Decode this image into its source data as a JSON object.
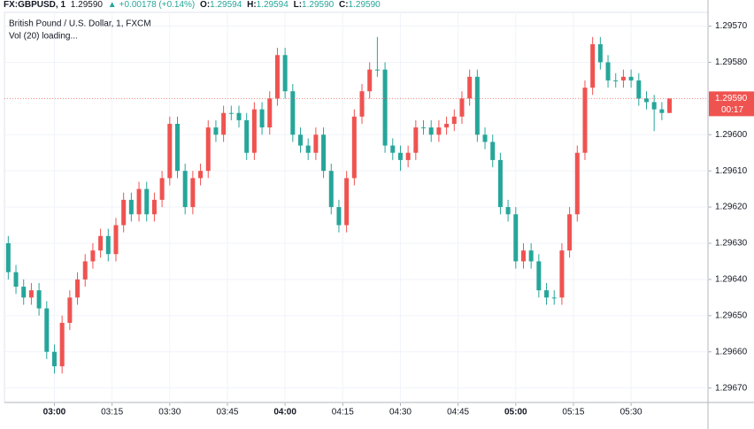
{
  "header": {
    "symbol": "FX:GBPUSD, 1",
    "price": "1.29590",
    "change": "+0.00178 (+0.14%)",
    "ohlc": [
      {
        "label": "O:",
        "value": "1.29594"
      },
      {
        "label": "H:",
        "value": "1.29594"
      },
      {
        "label": "L:",
        "value": "1.29590"
      },
      {
        "label": "C:",
        "value": "1.29590"
      }
    ]
  },
  "chart_data": {
    "type": "candlestick",
    "legend": [
      "British Pound / U.S. Dollar, 1, FXCM",
      "Vol (20) loading..."
    ],
    "up_color": "#26a69a",
    "down_color": "#ef5350",
    "grid": true,
    "xlim": [
      167,
      350
    ],
    "ylim": [
      1.29564,
      1.29674
    ],
    "xticks": [
      {
        "value": 180,
        "label": "03:00"
      },
      {
        "value": 195,
        "label": "03:15"
      },
      {
        "value": 210,
        "label": "03:30"
      },
      {
        "value": 225,
        "label": "03:45"
      },
      {
        "value": 240,
        "label": "04:00"
      },
      {
        "value": 255,
        "label": "04:15"
      },
      {
        "value": 270,
        "label": "04:30"
      },
      {
        "value": 285,
        "label": "04:45"
      },
      {
        "value": 300,
        "label": "05:00"
      },
      {
        "value": 315,
        "label": "05:15"
      },
      {
        "value": 330,
        "label": "05:30"
      }
    ],
    "yticks": [
      {
        "value": 1.2967,
        "label": "1.29670"
      },
      {
        "value": 1.2966,
        "label": "1.29660"
      },
      {
        "value": 1.2965,
        "label": "1.29650"
      },
      {
        "value": 1.2964,
        "label": "1.29640"
      },
      {
        "value": 1.2963,
        "label": "1.29630"
      },
      {
        "value": 1.2962,
        "label": "1.29620"
      },
      {
        "value": 1.2961,
        "label": "1.29610"
      },
      {
        "value": 1.296,
        "label": "1.29600"
      },
      {
        "value": 1.2958,
        "label": "1.29580"
      },
      {
        "value": 1.2957,
        "label": "1.29570"
      }
    ],
    "last_price": {
      "value": 1.2959,
      "label": "1.29590"
    },
    "countdown": "00:17",
    "x": [
      168,
      170,
      172,
      174,
      176,
      178,
      180,
      182,
      184,
      186,
      188,
      190,
      192,
      194,
      196,
      198,
      200,
      202,
      204,
      206,
      208,
      210,
      212,
      214,
      216,
      218,
      220,
      222,
      224,
      226,
      228,
      230,
      232,
      234,
      236,
      238,
      240,
      242,
      244,
      246,
      248,
      250,
      252,
      254,
      256,
      258,
      260,
      262,
      264,
      266,
      268,
      270,
      272,
      274,
      276,
      278,
      280,
      282,
      284,
      286,
      288,
      290,
      292,
      294,
      296,
      298,
      300,
      302,
      304,
      306,
      308,
      310,
      312,
      314,
      316,
      318,
      320,
      322,
      324,
      326,
      328,
      330,
      332,
      334,
      336,
      338,
      340
    ],
    "open": [
      1.2963,
      1.29638,
      1.29642,
      1.29645,
      1.29643,
      1.29648,
      1.2966,
      1.29664,
      1.29652,
      1.29645,
      1.2964,
      1.29635,
      1.29632,
      1.29628,
      1.29633,
      1.29625,
      1.29618,
      1.29622,
      1.29615,
      1.29622,
      1.29618,
      1.29612,
      1.29597,
      1.2961,
      1.2962,
      1.29612,
      1.2961,
      1.29598,
      1.296,
      1.29594,
      1.29594,
      1.29596,
      1.29605,
      1.29593,
      1.29598,
      1.2959,
      1.29578,
      1.29588,
      1.296,
      1.29603,
      1.29605,
      1.296,
      1.2961,
      1.2962,
      1.29625,
      1.29612,
      1.29595,
      1.29588,
      1.29582,
      1.29582,
      1.29603,
      1.29605,
      1.29607,
      1.29605,
      1.29598,
      1.29598,
      1.296,
      1.29598,
      1.29597,
      1.29595,
      1.2959,
      1.29584,
      1.296,
      1.29602,
      1.29607,
      1.2962,
      1.29622,
      1.29635,
      1.29632,
      1.29635,
      1.29643,
      1.29645,
      1.29645,
      1.29632,
      1.29622,
      1.29605,
      1.29587,
      1.29575,
      1.2958,
      1.29585,
      1.29585,
      1.29584,
      1.29585,
      1.2959,
      1.29591,
      1.29593,
      1.29594
    ],
    "high": [
      1.2964,
      1.29644,
      1.29647,
      1.29647,
      1.2965,
      1.29662,
      1.29666,
      1.29666,
      1.29654,
      1.29647,
      1.29642,
      1.29637,
      1.29634,
      1.29635,
      1.29635,
      1.29627,
      1.29624,
      1.29624,
      1.29624,
      1.29624,
      1.2962,
      1.29614,
      1.29612,
      1.29622,
      1.29622,
      1.29614,
      1.29612,
      1.29602,
      1.29602,
      1.29596,
      1.29598,
      1.29607,
      1.29607,
      1.296,
      1.296,
      1.29592,
      1.2959,
      1.29602,
      1.29605,
      1.29607,
      1.29607,
      1.29612,
      1.29622,
      1.29627,
      1.29627,
      1.29614,
      1.29597,
      1.2959,
      1.29584,
      1.29605,
      1.29607,
      1.2961,
      1.29609,
      1.29607,
      1.296,
      1.29602,
      1.29602,
      1.296,
      1.29599,
      1.29597,
      1.29592,
      1.29602,
      1.29604,
      1.29609,
      1.29622,
      1.29624,
      1.29637,
      1.29637,
      1.29637,
      1.29645,
      1.29647,
      1.29647,
      1.29647,
      1.29634,
      1.29624,
      1.29607,
      1.29589,
      1.29582,
      1.29587,
      1.29587,
      1.29587,
      1.29587,
      1.29592,
      1.29593,
      1.29599,
      1.29596,
      1.29594
    ],
    "low": [
      1.29628,
      1.29636,
      1.2964,
      1.29641,
      1.29641,
      1.29646,
      1.29658,
      1.2965,
      1.29643,
      1.29638,
      1.29633,
      1.2963,
      1.29626,
      1.29626,
      1.29623,
      1.29616,
      1.29616,
      1.29613,
      1.29613,
      1.29616,
      1.2961,
      1.29595,
      1.29595,
      1.29608,
      1.2961,
      1.29608,
      1.29596,
      1.29596,
      1.29592,
      1.29592,
      1.29592,
      1.29594,
      1.29591,
      1.29591,
      1.29588,
      1.29576,
      1.29576,
      1.29586,
      1.29598,
      1.29601,
      1.29598,
      1.29598,
      1.29608,
      1.29618,
      1.2961,
      1.29593,
      1.29586,
      1.2958,
      1.29573,
      1.2958,
      1.29601,
      1.29603,
      1.29603,
      1.29596,
      1.29596,
      1.29596,
      1.29596,
      1.29595,
      1.29593,
      1.29588,
      1.29582,
      1.29582,
      1.29598,
      1.296,
      1.29605,
      1.29618,
      1.2962,
      1.2963,
      1.2963,
      1.29633,
      1.29641,
      1.29643,
      1.2963,
      1.2962,
      1.29603,
      1.29585,
      1.29573,
      1.29573,
      1.29578,
      1.29583,
      1.29582,
      1.29582,
      1.29583,
      1.29588,
      1.29589,
      1.29591,
      1.2959
    ],
    "close": [
      1.29638,
      1.29642,
      1.29645,
      1.29643,
      1.29648,
      1.2966,
      1.29664,
      1.29652,
      1.29645,
      1.2964,
      1.29635,
      1.29632,
      1.29628,
      1.29633,
      1.29625,
      1.29618,
      1.29622,
      1.29615,
      1.29622,
      1.29618,
      1.29612,
      1.29597,
      1.2961,
      1.2962,
      1.29612,
      1.2961,
      1.29598,
      1.296,
      1.29594,
      1.29594,
      1.29596,
      1.29605,
      1.29593,
      1.29598,
      1.2959,
      1.29578,
      1.29588,
      1.296,
      1.29603,
      1.29605,
      1.296,
      1.2961,
      1.2962,
      1.29625,
      1.29612,
      1.29595,
      1.29588,
      1.29582,
      1.29582,
      1.29603,
      1.29605,
      1.29607,
      1.29605,
      1.29598,
      1.29598,
      1.296,
      1.29598,
      1.29597,
      1.29595,
      1.2959,
      1.29584,
      1.296,
      1.29602,
      1.29607,
      1.2962,
      1.29622,
      1.29635,
      1.29632,
      1.29635,
      1.29643,
      1.29645,
      1.29645,
      1.29632,
      1.29622,
      1.29605,
      1.29587,
      1.29575,
      1.2958,
      1.29585,
      1.29585,
      1.29584,
      1.29585,
      1.2959,
      1.29591,
      1.29593,
      1.29594,
      1.2959
    ]
  }
}
